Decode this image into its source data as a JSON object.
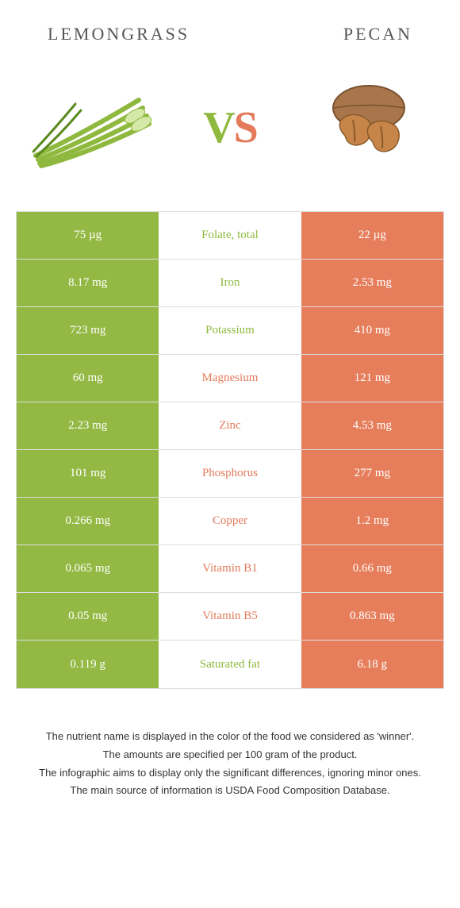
{
  "header": {
    "left_title": "LEMONGRASS",
    "right_title": "PECAN"
  },
  "vs": {
    "v": "V",
    "s": "S"
  },
  "colors": {
    "left": "#93b944",
    "right": "#e67e5c",
    "left_text": "#8fb93e",
    "right_text": "#e37a5a"
  },
  "rows": [
    {
      "left": "75 µg",
      "mid": "Folate, total",
      "right": "22 µg",
      "winner": "left"
    },
    {
      "left": "8.17 mg",
      "mid": "Iron",
      "right": "2.53 mg",
      "winner": "left"
    },
    {
      "left": "723 mg",
      "mid": "Potassium",
      "right": "410 mg",
      "winner": "left"
    },
    {
      "left": "60 mg",
      "mid": "Magnesium",
      "right": "121 mg",
      "winner": "right"
    },
    {
      "left": "2.23 mg",
      "mid": "Zinc",
      "right": "4.53 mg",
      "winner": "right"
    },
    {
      "left": "101 mg",
      "mid": "Phosphorus",
      "right": "277 mg",
      "winner": "right"
    },
    {
      "left": "0.266 mg",
      "mid": "Copper",
      "right": "1.2 mg",
      "winner": "right"
    },
    {
      "left": "0.065 mg",
      "mid": "Vitamin B1",
      "right": "0.66 mg",
      "winner": "right"
    },
    {
      "left": "0.05 mg",
      "mid": "Vitamin B5",
      "right": "0.863 mg",
      "winner": "right"
    },
    {
      "left": "0.119 g",
      "mid": "Saturated fat",
      "right": "6.18 g",
      "winner": "left"
    }
  ],
  "footer": {
    "line1": "The nutrient name is displayed in the color of the food we considered as 'winner'.",
    "line2": "The amounts are specified per 100 gram of the product.",
    "line3": "The infographic aims to display only the significant differences, ignoring minor ones.",
    "line4": "The main source of information is USDA Food Composition Database."
  }
}
